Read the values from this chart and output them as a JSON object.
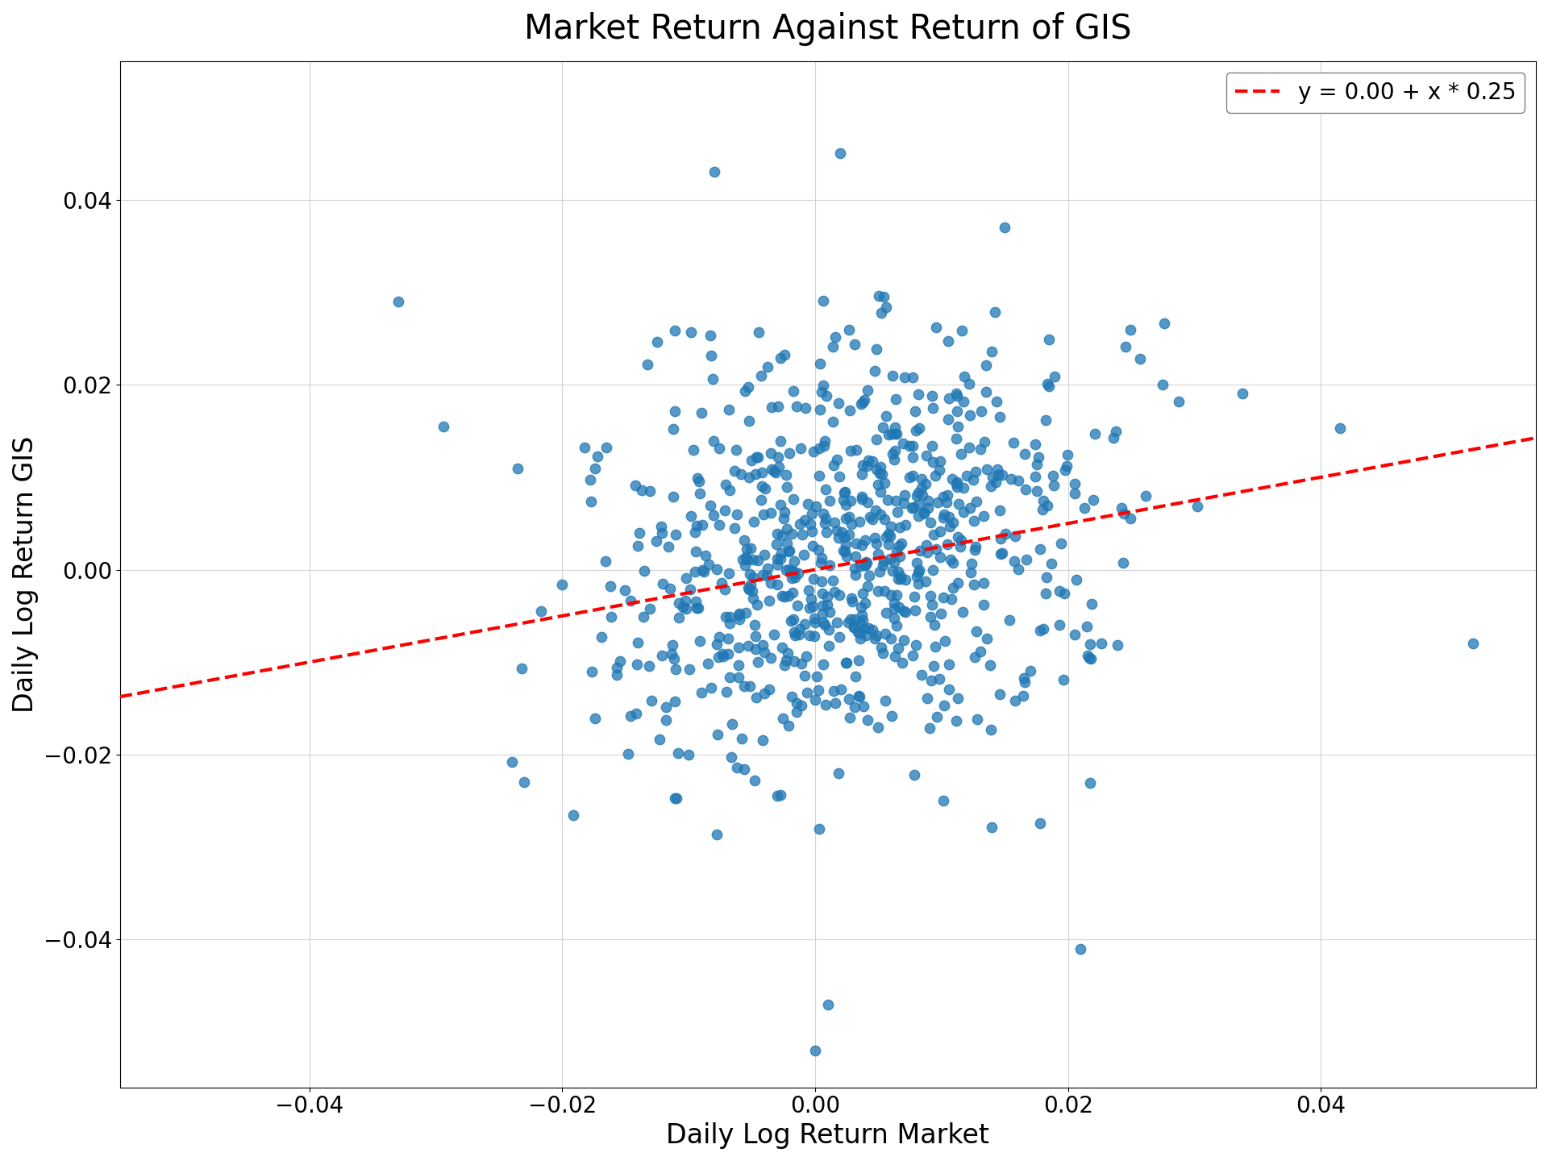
{
  "title": "Market Return Against Return of GIS",
  "xlabel": "Daily Log Return Market",
  "ylabel": "Daily Log Return GIS",
  "legend_label": "y = 0.00 + x * 0.25",
  "intercept": 0.0,
  "slope": 0.25,
  "scatter_color": "#1f77b4",
  "line_color": "red",
  "marker_size": 80,
  "marker_alpha": 0.75,
  "xlim": [
    -0.055,
    0.057
  ],
  "ylim": [
    -0.056,
    0.055
  ],
  "xticks": [
    -0.04,
    -0.02,
    0.0,
    0.02,
    0.04
  ],
  "yticks": [
    -0.04,
    -0.02,
    0.0,
    0.02,
    0.04
  ],
  "figsize": [
    19.2,
    14.4
  ],
  "dpi": 100,
  "title_fontsize": 30,
  "label_fontsize": 24,
  "tick_fontsize": 20,
  "legend_fontsize": 20,
  "random_seed": 42,
  "n_points": 750,
  "market_mean": 0.003,
  "market_std": 0.01,
  "gis_noise_std": 0.011
}
